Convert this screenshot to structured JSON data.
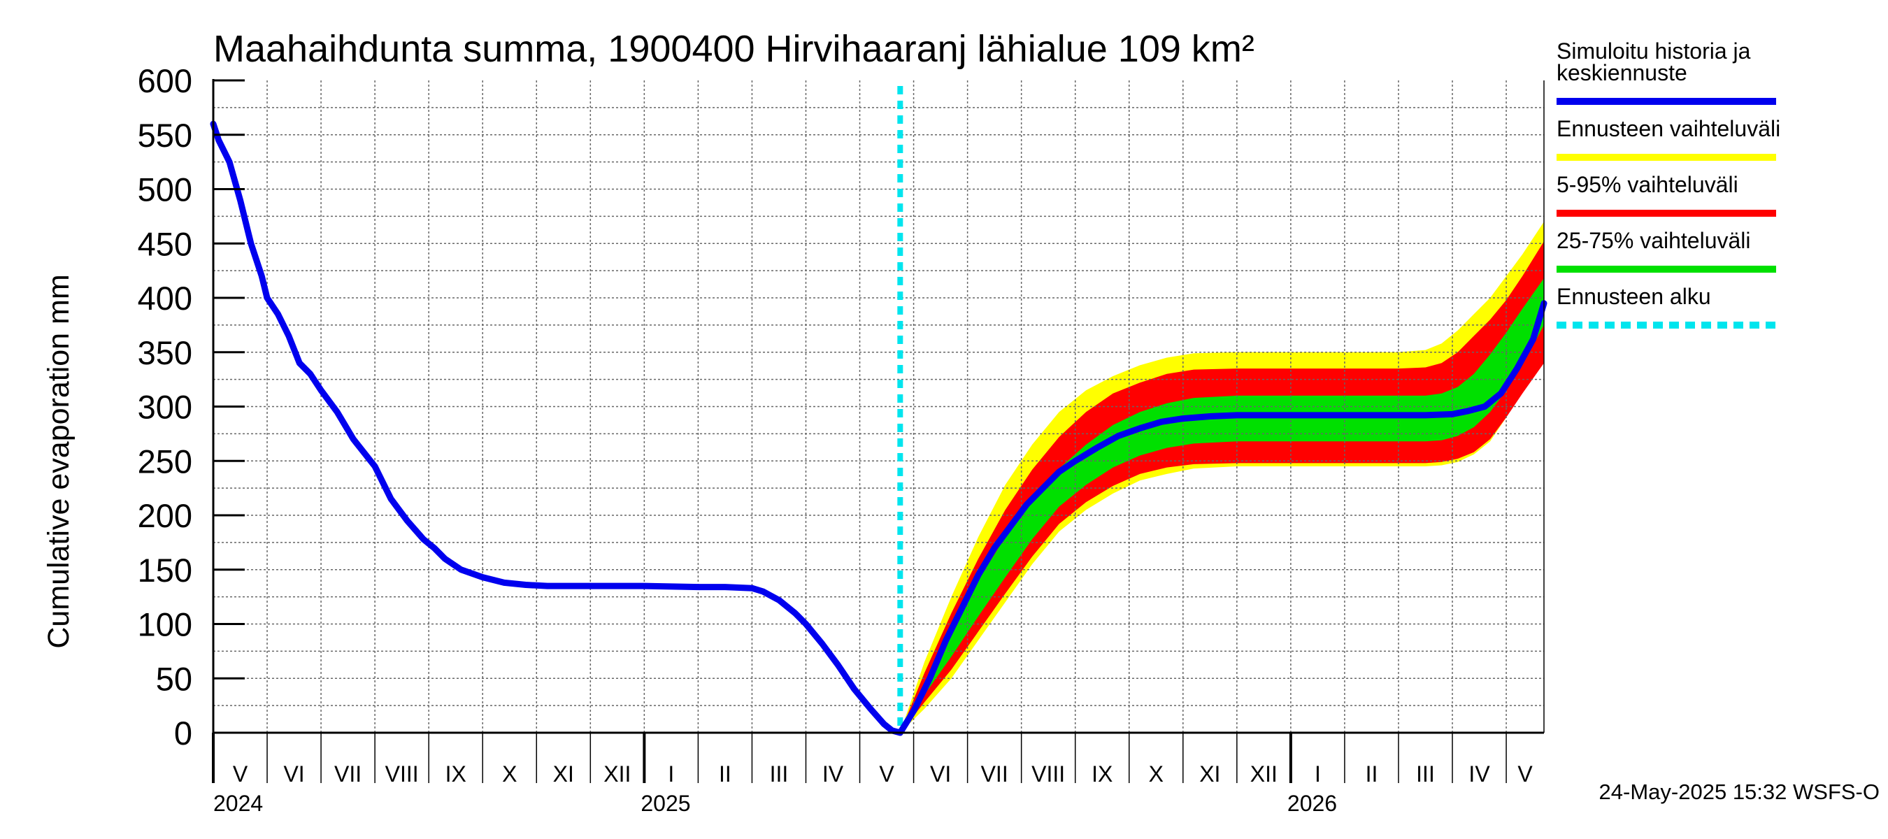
{
  "chart_data": {
    "type": "area",
    "title": "Maahaihdunta summa, 1900400 Hirvihaaranj lähialue 109 km²",
    "ylabel": "Cumulative evaporation   mm",
    "xlabel": "",
    "ylim": [
      0,
      600
    ],
    "yticks": [
      "0",
      "50",
      "100",
      "150",
      "200",
      "250",
      "300",
      "350",
      "400",
      "450",
      "500",
      "550",
      "600"
    ],
    "x_unit": "months since 2024-05-01",
    "xlim": [
      0,
      24.7
    ],
    "month_labels": [
      "V",
      "VI",
      "VII",
      "VIII",
      "IX",
      "X",
      "XI",
      "XII",
      "I",
      "II",
      "III",
      "IV",
      "V",
      "VI",
      "VII",
      "VIII",
      "IX",
      "X",
      "XI",
      "XII",
      "I",
      "II",
      "III",
      "IV",
      "V"
    ],
    "year_labels": [
      {
        "label": "2024",
        "month_index": 0
      },
      {
        "label": "2025",
        "month_index": 8
      },
      {
        "label": "2026",
        "month_index": 20
      }
    ],
    "forecast_start": 12.75,
    "series": [
      {
        "name": "Simuloitu historia ja keskiennuste",
        "color": "#0000ee",
        "x": [
          0,
          0.1,
          0.3,
          0.5,
          0.7,
          0.9,
          1.0,
          1.2,
          1.4,
          1.6,
          1.8,
          2.0,
          2.3,
          2.6,
          3.0,
          3.3,
          3.6,
          3.9,
          4.1,
          4.3,
          4.6,
          5.0,
          5.4,
          5.8,
          6.2,
          7.0,
          8.0,
          9.0,
          9.5,
          10.0,
          10.2,
          10.5,
          10.8,
          11.0,
          11.3,
          11.6,
          11.9,
          12.2,
          12.45,
          12.6,
          12.75,
          13.0,
          13.3,
          13.6,
          13.9,
          14.2,
          14.5,
          14.8,
          15.1,
          15.4,
          15.7,
          16.0,
          16.4,
          16.8,
          17.2,
          17.6,
          18.0,
          18.5,
          19.0,
          20.0,
          21.0,
          22.0,
          22.5,
          23.0,
          23.3,
          23.6,
          23.9,
          24.2,
          24.5,
          24.7
        ],
        "y": [
          560,
          545,
          525,
          490,
          450,
          420,
          400,
          385,
          365,
          340,
          330,
          315,
          295,
          270,
          245,
          215,
          195,
          178,
          170,
          160,
          150,
          143,
          138,
          136,
          135,
          135,
          135,
          134,
          134,
          133,
          130,
          122,
          110,
          100,
          82,
          62,
          40,
          22,
          8,
          2,
          0,
          20,
          50,
          85,
          115,
          145,
          170,
          190,
          210,
          225,
          240,
          250,
          262,
          273,
          280,
          286,
          289,
          291,
          292,
          292,
          292,
          292,
          292,
          293,
          296,
          300,
          312,
          335,
          362,
          395
        ]
      },
      {
        "name": "Ennusteen vaihteluväli",
        "color": "#ffff00",
        "x": [
          12.75,
          13.2,
          13.7,
          14.2,
          14.7,
          15.2,
          15.7,
          16.2,
          16.7,
          17.2,
          17.7,
          18.2,
          19.0,
          20.0,
          21.0,
          22.0,
          22.5,
          22.8,
          23.1,
          23.4,
          23.7,
          24.0,
          24.3,
          24.7
        ],
        "upper": [
          0,
          65,
          125,
          180,
          228,
          265,
          295,
          315,
          328,
          338,
          345,
          349,
          350,
          350,
          350,
          350,
          352,
          358,
          370,
          385,
          400,
          420,
          440,
          470
        ],
        "lower": [
          0,
          22,
          50,
          85,
          120,
          155,
          185,
          205,
          220,
          232,
          238,
          243,
          245,
          245,
          245,
          245,
          245,
          246,
          249,
          256,
          268,
          290,
          315,
          345
        ]
      },
      {
        "name": "5-95% vaihteluväli",
        "color": "#ff0000",
        "x": [
          12.75,
          13.2,
          13.7,
          14.2,
          14.7,
          15.2,
          15.7,
          16.2,
          16.7,
          17.2,
          17.7,
          18.2,
          19.0,
          20.0,
          21.0,
          22.0,
          22.5,
          22.8,
          23.1,
          23.4,
          23.7,
          24.0,
          24.3,
          24.7
        ],
        "upper": [
          0,
          55,
          110,
          160,
          205,
          242,
          272,
          295,
          312,
          322,
          330,
          334,
          335,
          335,
          335,
          335,
          336,
          340,
          350,
          365,
          380,
          398,
          420,
          452
        ],
        "lower": [
          0,
          28,
          58,
          93,
          128,
          162,
          192,
          212,
          227,
          238,
          244,
          247,
          248,
          248,
          248,
          248,
          248,
          249,
          252,
          258,
          270,
          290,
          312,
          340
        ]
      },
      {
        "name": "25-75% vaihteluväli",
        "color": "#00e000",
        "x": [
          12.75,
          13.2,
          13.7,
          14.2,
          14.7,
          15.2,
          15.7,
          16.2,
          16.7,
          17.2,
          17.7,
          18.2,
          19.0,
          20.0,
          21.0,
          22.0,
          22.5,
          22.8,
          23.1,
          23.4,
          23.7,
          24.0,
          24.3,
          24.7
        ],
        "upper": [
          0,
          45,
          95,
          140,
          180,
          215,
          243,
          265,
          283,
          295,
          303,
          308,
          310,
          310,
          310,
          310,
          310,
          312,
          318,
          330,
          348,
          368,
          390,
          418
        ],
        "lower": [
          0,
          35,
          70,
          107,
          143,
          178,
          208,
          228,
          244,
          255,
          262,
          266,
          268,
          268,
          268,
          268,
          268,
          269,
          273,
          281,
          295,
          315,
          338,
          375
        ]
      }
    ],
    "legend": [
      {
        "label_lines": [
          "Simuloitu historia ja",
          "keskiennuste"
        ],
        "color": "#0000ee",
        "style": "solid"
      },
      {
        "label_lines": [
          "Ennusteen vaihteluväli"
        ],
        "color": "#ffff00",
        "style": "solid"
      },
      {
        "label_lines": [
          "5-95% vaihteluväli"
        ],
        "color": "#ff0000",
        "style": "solid"
      },
      {
        "label_lines": [
          "25-75% vaihteluväli"
        ],
        "color": "#00e000",
        "style": "solid"
      },
      {
        "label_lines": [
          "Ennusteen alku"
        ],
        "color": "#00e5ee",
        "style": "dashed"
      }
    ],
    "footer": "24-May-2025 15:32 WSFS-O"
  }
}
